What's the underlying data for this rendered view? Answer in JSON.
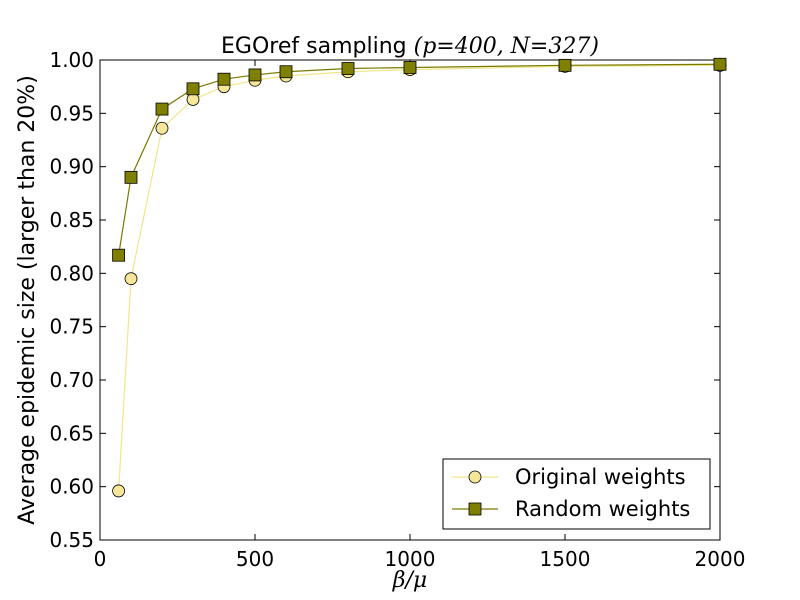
{
  "chart_data": {
    "type": "line",
    "title": "EGOref sampling",
    "title_math": "(p=400, N=327)",
    "xlabel": "β/μ",
    "ylabel": "Average epidemic size (larger than 20%)",
    "xlim": [
      0,
      2000
    ],
    "ylim": [
      0.55,
      1.0
    ],
    "xticks": [
      0,
      500,
      1000,
      1500,
      2000
    ],
    "xtick_labels": [
      "0",
      "500",
      "1000",
      "1500",
      "2000"
    ],
    "yticks": [
      0.55,
      0.6,
      0.65,
      0.7,
      0.75,
      0.8,
      0.85,
      0.9,
      0.95,
      1.0
    ],
    "ytick_labels": [
      "0.55",
      "0.60",
      "0.65",
      "0.70",
      "0.75",
      "0.80",
      "0.85",
      "0.90",
      "0.95",
      "1.00"
    ],
    "grid": false,
    "legend_position": "lower-right",
    "series": [
      {
        "name": "Original weights",
        "marker": "circle",
        "line_color": "#f2e58a",
        "marker_fill": "#f5e69a",
        "x": [
          60,
          100,
          200,
          300,
          400,
          500,
          600,
          800,
          1000,
          1500,
          2000
        ],
        "values": [
          0.596,
          0.795,
          0.936,
          0.963,
          0.975,
          0.981,
          0.985,
          0.989,
          0.991,
          0.994,
          0.995
        ]
      },
      {
        "name": "Random weights",
        "marker": "square",
        "line_color": "#7a7a00",
        "marker_fill": "#808000",
        "x": [
          60,
          100,
          200,
          300,
          400,
          500,
          600,
          800,
          1000,
          1500,
          2000
        ],
        "values": [
          0.817,
          0.89,
          0.954,
          0.973,
          0.982,
          0.986,
          0.989,
          0.992,
          0.993,
          0.995,
          0.996
        ]
      }
    ]
  }
}
